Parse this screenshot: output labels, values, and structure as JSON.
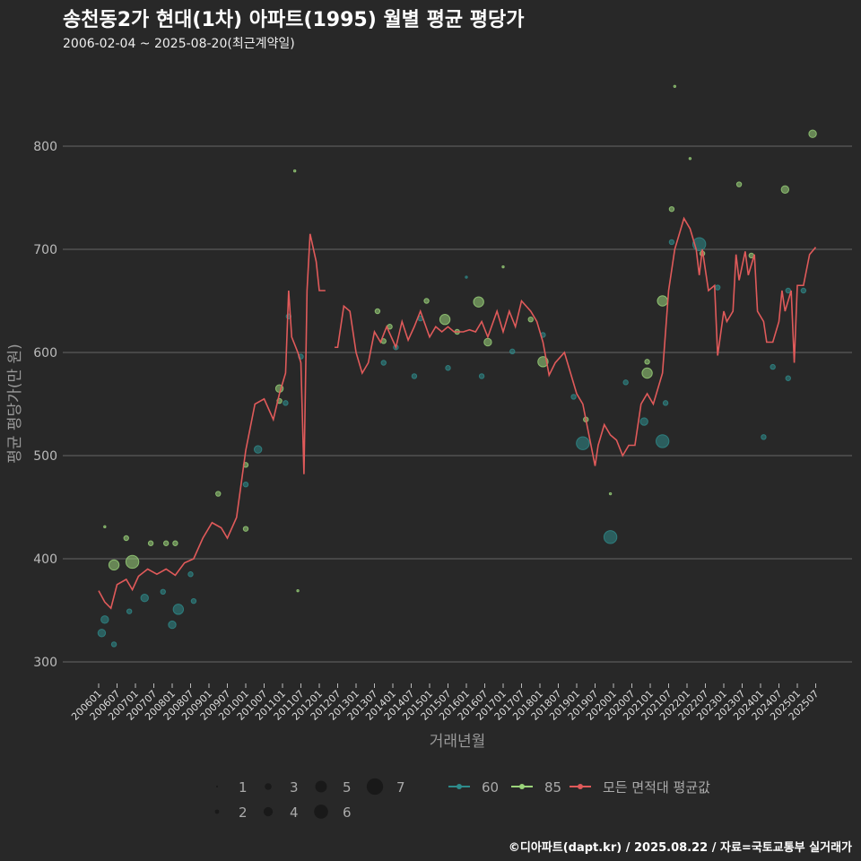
{
  "title": "송천동2가 현대(1차) 아파트(1995) 월별 평균 평당가",
  "subtitle": "2006-02-04 ~ 2025-08-20(최근계약일)",
  "footer": "©디아파트(dapt.kr) / 2025.08.22 / 자료=국토교통부 실거래가",
  "colors": {
    "bg": "#282828",
    "grid": "#5a5a5a",
    "s60": "#2e8b8b",
    "s85": "#9bd47a",
    "avg": "#e05a5a"
  },
  "chart_data": {
    "type": "line",
    "title": "송천동2가 현대(1차) 아파트(1995) 월별 평균 평당가",
    "xlabel": "거래년월",
    "ylabel": "평균 평당가(만 원)",
    "ylim": [
      280,
      870
    ],
    "yticks": [
      300,
      400,
      500,
      600,
      700,
      800
    ],
    "x_unit": "months since 200601",
    "xticks": [
      "200601",
      "200607",
      "200701",
      "200707",
      "200801",
      "200807",
      "200901",
      "200907",
      "201001",
      "201007",
      "201101",
      "201107",
      "201201",
      "201207",
      "201301",
      "201307",
      "201401",
      "201407",
      "201501",
      "201507",
      "201601",
      "201607",
      "201701",
      "201707",
      "201801",
      "201807",
      "201901",
      "201907",
      "202001",
      "202007",
      "202101",
      "202107",
      "202201",
      "202207",
      "202301",
      "202307",
      "202401",
      "202407",
      "202501",
      "202507"
    ],
    "legend": {
      "size_title": "",
      "sizes": [
        1,
        2,
        3,
        4,
        5,
        6,
        7
      ],
      "series": [
        "60",
        "85",
        "모든 면적대 평균값"
      ],
      "placement": "bottom"
    },
    "avg_series": {
      "name": "모든 면적대 평균값",
      "points": [
        [
          0,
          369
        ],
        [
          2,
          358
        ],
        [
          4,
          352
        ],
        [
          6,
          375
        ],
        [
          9,
          380
        ],
        [
          11,
          370
        ],
        [
          13,
          383
        ],
        [
          16,
          390
        ],
        [
          19,
          385
        ],
        [
          22,
          390
        ],
        [
          25,
          384
        ],
        [
          28,
          396
        ],
        [
          31,
          400
        ],
        [
          34,
          420
        ],
        [
          37,
          435
        ],
        [
          40,
          430
        ],
        [
          42,
          420
        ],
        [
          45,
          440
        ],
        [
          48,
          505
        ],
        [
          51,
          550
        ],
        [
          54,
          555
        ],
        [
          57,
          535
        ],
        [
          59,
          560
        ],
        [
          61,
          580
        ],
        [
          62,
          660
        ],
        [
          63,
          615
        ],
        [
          65,
          600
        ],
        [
          66,
          590
        ],
        [
          67,
          482
        ],
        [
          68,
          660
        ],
        [
          69,
          715
        ],
        [
          71,
          688
        ],
        [
          72,
          660
        ],
        [
          74,
          660
        ],
        [
          75,
          null
        ],
        [
          77,
          605
        ],
        [
          78,
          605
        ],
        [
          80,
          645
        ],
        [
          82,
          640
        ],
        [
          84,
          600
        ],
        [
          86,
          580
        ],
        [
          88,
          590
        ],
        [
          90,
          620
        ],
        [
          92,
          610
        ],
        [
          94,
          625
        ],
        [
          97,
          605
        ],
        [
          99,
          630
        ],
        [
          101,
          612
        ],
        [
          103,
          625
        ],
        [
          105,
          640
        ],
        [
          108,
          615
        ],
        [
          110,
          625
        ],
        [
          112,
          620
        ],
        [
          114,
          625
        ],
        [
          116,
          620
        ],
        [
          119,
          620
        ],
        [
          121,
          622
        ],
        [
          123,
          620
        ],
        [
          125,
          630
        ],
        [
          127,
          615
        ],
        [
          130,
          640
        ],
        [
          132,
          620
        ],
        [
          134,
          640
        ],
        [
          136,
          625
        ],
        [
          138,
          650
        ],
        [
          141,
          640
        ],
        [
          143,
          630
        ],
        [
          145,
          610
        ],
        [
          147,
          578
        ],
        [
          149,
          590
        ],
        [
          152,
          600
        ],
        [
          154,
          580
        ],
        [
          156,
          560
        ],
        [
          158,
          550
        ],
        [
          160,
          520
        ],
        [
          162,
          490
        ],
        [
          163,
          510
        ],
        [
          165,
          530
        ],
        [
          167,
          520
        ],
        [
          169,
          515
        ],
        [
          171,
          500
        ],
        [
          173,
          510
        ],
        [
          175,
          510
        ],
        [
          177,
          550
        ],
        [
          179,
          560
        ],
        [
          181,
          550
        ],
        [
          184,
          580
        ],
        [
          186,
          660
        ],
        [
          188,
          700
        ],
        [
          190,
          720
        ],
        [
          191,
          730
        ],
        [
          193,
          720
        ],
        [
          195,
          700
        ],
        [
          196,
          675
        ],
        [
          197,
          700
        ],
        [
          199,
          660
        ],
        [
          201,
          665
        ],
        [
          202,
          597
        ],
        [
          204,
          640
        ],
        [
          205,
          630
        ],
        [
          207,
          640
        ],
        [
          208,
          695
        ],
        [
          209,
          670
        ],
        [
          211,
          698
        ],
        [
          212,
          675
        ],
        [
          214,
          695
        ],
        [
          215,
          640
        ],
        [
          217,
          630
        ],
        [
          218,
          610
        ],
        [
          220,
          610
        ],
        [
          222,
          630
        ],
        [
          223,
          660
        ],
        [
          224,
          640
        ],
        [
          226,
          660
        ],
        [
          227,
          590
        ],
        [
          228,
          665
        ],
        [
          230,
          665
        ],
        [
          232,
          695
        ],
        [
          234,
          702
        ]
      ]
    },
    "scatter": [
      {
        "name": "60",
        "points": [
          [
            1,
            328,
            3
          ],
          [
            2,
            341,
            3
          ],
          [
            5,
            317,
            2
          ],
          [
            10,
            349,
            2
          ],
          [
            15,
            362,
            3
          ],
          [
            21,
            368,
            2
          ],
          [
            24,
            336,
            3
          ],
          [
            26,
            351,
            4
          ],
          [
            30,
            385,
            2
          ],
          [
            31,
            359,
            2
          ],
          [
            48,
            472,
            2
          ],
          [
            52,
            506,
            3
          ],
          [
            61,
            551,
            2
          ],
          [
            62,
            635,
            2
          ],
          [
            66,
            596,
            2
          ],
          [
            93,
            590,
            2
          ],
          [
            97,
            605,
            2
          ],
          [
            103,
            577,
            2
          ],
          [
            105,
            633,
            2
          ],
          [
            114,
            585,
            2
          ],
          [
            120,
            673,
            1
          ],
          [
            125,
            577,
            2
          ],
          [
            135,
            601,
            2
          ],
          [
            145,
            617,
            2
          ],
          [
            155,
            557,
            2
          ],
          [
            158,
            512,
            5
          ],
          [
            167,
            421,
            5
          ],
          [
            172,
            571,
            2
          ],
          [
            178,
            533,
            3
          ],
          [
            184,
            514,
            5
          ],
          [
            185,
            551,
            2
          ],
          [
            187,
            707,
            2
          ],
          [
            196,
            705,
            5
          ],
          [
            202,
            663,
            2
          ],
          [
            217,
            518,
            2
          ],
          [
            220,
            586,
            2
          ],
          [
            225,
            575,
            2
          ],
          [
            225,
            660,
            2
          ],
          [
            230,
            660,
            2
          ]
        ]
      },
      {
        "name": "85",
        "points": [
          [
            2,
            431,
            1
          ],
          [
            5,
            394,
            4
          ],
          [
            9,
            420,
            2
          ],
          [
            11,
            397,
            5
          ],
          [
            17,
            415,
            2
          ],
          [
            22,
            415,
            2
          ],
          [
            25,
            415,
            2
          ],
          [
            39,
            463,
            2
          ],
          [
            48,
            491,
            2
          ],
          [
            48,
            429,
            2
          ],
          [
            59,
            553,
            2
          ],
          [
            59,
            565,
            3
          ],
          [
            64,
            776,
            1
          ],
          [
            65,
            369,
            1
          ],
          [
            91,
            640,
            2
          ],
          [
            93,
            611,
            2
          ],
          [
            95,
            625,
            2
          ],
          [
            107,
            650,
            2
          ],
          [
            113,
            632,
            4
          ],
          [
            117,
            620,
            2
          ],
          [
            124,
            649,
            4
          ],
          [
            127,
            610,
            3
          ],
          [
            132,
            683,
            1
          ],
          [
            141,
            632,
            2
          ],
          [
            145,
            591,
            4
          ],
          [
            159,
            535,
            2
          ],
          [
            167,
            463,
            1
          ],
          [
            179,
            580,
            4
          ],
          [
            179,
            591,
            2
          ],
          [
            184,
            650,
            4
          ],
          [
            187,
            739,
            2
          ],
          [
            188,
            858,
            1
          ],
          [
            193,
            788,
            1
          ],
          [
            197,
            696,
            2
          ],
          [
            209,
            763,
            2
          ],
          [
            213,
            694,
            2
          ],
          [
            224,
            758,
            3
          ],
          [
            233,
            812,
            3
          ]
        ]
      }
    ]
  }
}
